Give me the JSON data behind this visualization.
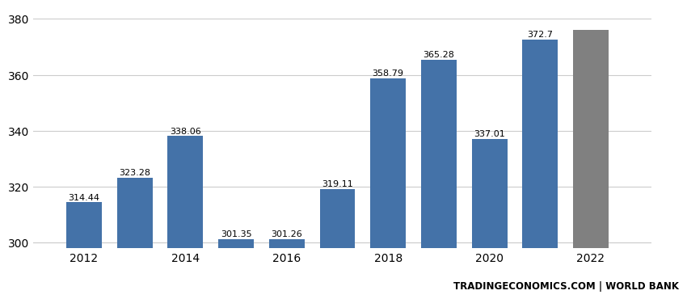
{
  "years": [
    2012,
    2013,
    2014,
    2015,
    2016,
    2017,
    2018,
    2019,
    2020,
    2021,
    2022
  ],
  "values": [
    314.44,
    323.28,
    338.06,
    301.35,
    301.26,
    319.11,
    358.79,
    365.28,
    337.01,
    372.7,
    376.0
  ],
  "bar_colors": [
    "#4472a8",
    "#4472a8",
    "#4472a8",
    "#4472a8",
    "#4472a8",
    "#4472a8",
    "#4472a8",
    "#4472a8",
    "#4472a8",
    "#4472a8",
    "#808080"
  ],
  "labels": [
    "314.44",
    "323.28",
    "338.06",
    "301.35",
    "301.26",
    "319.11",
    "358.79",
    "365.28",
    "337.01",
    "372.7",
    ""
  ],
  "ylim": [
    298,
    384
  ],
  "yticks": [
    300,
    320,
    340,
    360,
    380
  ],
  "xtick_labels": [
    "2012",
    "2014",
    "2016",
    "2018",
    "2020",
    "2022"
  ],
  "xtick_positions": [
    2012,
    2014,
    2016,
    2018,
    2020,
    2022
  ],
  "background_color": "#ffffff",
  "grid_color": "#cccccc",
  "watermark": "TRADINGECONOMICS.COM | WORLD BANK",
  "label_fontsize": 8.0,
  "watermark_fontsize": 8.5,
  "tick_fontsize": 10,
  "bar_width": 0.7
}
